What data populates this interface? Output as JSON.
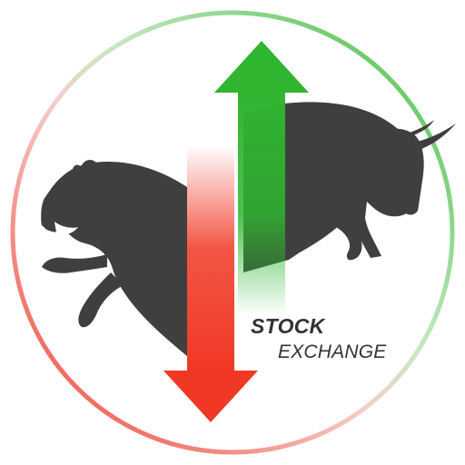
{
  "logo": {
    "title_line1": "STOCK",
    "title_line2": "EXCHANGE",
    "figures": {
      "left": "bear",
      "right": "bull"
    },
    "arrows": {
      "up": "up-arrow",
      "down": "down-arrow"
    }
  },
  "colors": {
    "ring_green": "#3dbb3a",
    "ring_red": "#ee3b2d",
    "arrow_green": "#2fb52f",
    "arrow_red": "#f03824",
    "animal": "#3f3f3f",
    "text": "#333333"
  }
}
